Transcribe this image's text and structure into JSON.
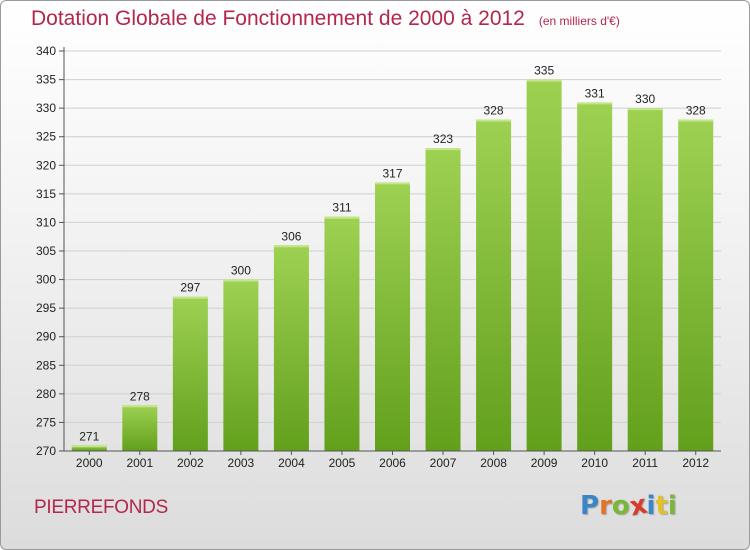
{
  "header": {
    "title": "Dotation Globale de Fonctionnement de 2000 à 2012",
    "unit_note": "(en milliers d'€)"
  },
  "location": {
    "name": "PIERREFONDS"
  },
  "logo": {
    "text": "Proxiti",
    "letter_colors": [
      "#3a87c8",
      "#e2732a",
      "#7ab738",
      "#d93a2b",
      "#3a87c8",
      "#e2c02a",
      "#7ab738"
    ]
  },
  "colors": {
    "title": "#b4264c",
    "bar_top": "#9ed152",
    "bar_bottom": "#62a01c",
    "grid": "#cfcfcf",
    "axis": "#555555"
  },
  "chart_data": {
    "type": "bar",
    "title": "Dotation Globale de Fonctionnement de 2000 à 2012",
    "subtitle": "(en milliers d'€)",
    "xlabel": "",
    "ylabel": "",
    "categories": [
      "2000",
      "2001",
      "2002",
      "2003",
      "2004",
      "2005",
      "2006",
      "2007",
      "2008",
      "2009",
      "2010",
      "2011",
      "2012"
    ],
    "values": [
      271,
      278,
      297,
      300,
      306,
      311,
      317,
      323,
      328,
      335,
      331,
      330,
      328
    ],
    "ylim": [
      270,
      340
    ],
    "yticks": [
      270,
      275,
      280,
      285,
      290,
      295,
      300,
      305,
      310,
      315,
      320,
      325,
      330,
      335,
      340
    ],
    "grid": true,
    "legend": "none",
    "data_labels": true
  }
}
